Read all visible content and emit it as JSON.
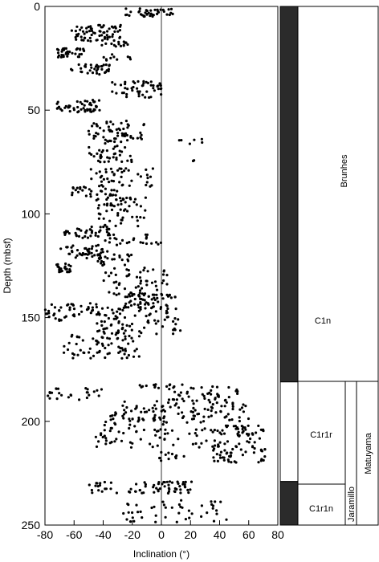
{
  "chart_data": {
    "type": "scatter",
    "title": "",
    "xlabel": "Inclination (°)",
    "ylabel": "Depth (mbsf)",
    "xlim": [
      -80,
      80
    ],
    "ylim": [
      0,
      250
    ],
    "y_inverted": true,
    "x_ticks": [
      -80,
      -60,
      -40,
      -20,
      0,
      20,
      40,
      60,
      80
    ],
    "y_ticks": [
      0,
      50,
      100,
      150,
      200,
      250
    ],
    "x_tick_labels": [
      "-80",
      "-60",
      "-40",
      "-20",
      "0",
      "20",
      "40",
      "60",
      "80"
    ],
    "y_tick_labels": [
      "0",
      "50",
      "100",
      "150",
      "200",
      "250"
    ],
    "reference_line_x": 0,
    "grid": false,
    "series_color": "#000000",
    "depth_segments": [
      {
        "y0": 1,
        "y1": 5,
        "xmin": -25,
        "xmax": 8,
        "count": 40
      },
      {
        "y0": 9,
        "y1": 17,
        "xmin": -62,
        "xmax": -28,
        "count": 70
      },
      {
        "y0": 17,
        "y1": 20,
        "xmin": -45,
        "xmax": -22,
        "count": 15
      },
      {
        "y0": 20,
        "y1": 25,
        "xmin": -75,
        "xmax": -52,
        "count": 35
      },
      {
        "y0": 23,
        "y1": 26,
        "xmin": -45,
        "xmax": -20,
        "count": 10
      },
      {
        "y0": 28,
        "y1": 33,
        "xmin": -62,
        "xmax": -35,
        "count": 35
      },
      {
        "y0": 36,
        "y1": 44,
        "xmin": -35,
        "xmax": 0,
        "count": 50
      },
      {
        "y0": 45,
        "y1": 51,
        "xmin": -72,
        "xmax": -42,
        "count": 50
      },
      {
        "y0": 55,
        "y1": 65,
        "xmin": -50,
        "xmax": -10,
        "count": 60
      },
      {
        "y0": 63,
        "y1": 68,
        "xmin": 10,
        "xmax": 30,
        "count": 6
      },
      {
        "y0": 65,
        "y1": 75,
        "xmin": -50,
        "xmax": -20,
        "count": 40
      },
      {
        "y0": 73,
        "y1": 78,
        "xmin": 20,
        "xmax": 25,
        "count": 2
      },
      {
        "y0": 78,
        "y1": 87,
        "xmin": -50,
        "xmax": -5,
        "count": 45
      },
      {
        "y0": 87,
        "y1": 92,
        "xmin": -62,
        "xmax": -30,
        "count": 30
      },
      {
        "y0": 92,
        "y1": 106,
        "xmin": -45,
        "xmax": -10,
        "count": 60
      },
      {
        "y0": 106,
        "y1": 112,
        "xmin": -68,
        "xmax": -35,
        "count": 40
      },
      {
        "y0": 110,
        "y1": 115,
        "xmin": -40,
        "xmax": 0,
        "count": 25
      },
      {
        "y0": 115,
        "y1": 122,
        "xmin": -70,
        "xmax": -40,
        "count": 40
      },
      {
        "y0": 118,
        "y1": 125,
        "xmin": -45,
        "xmax": -20,
        "count": 30
      },
      {
        "y0": 124,
        "y1": 128,
        "xmin": -72,
        "xmax": -60,
        "count": 25
      },
      {
        "y0": 126,
        "y1": 140,
        "xmin": -40,
        "xmax": 5,
        "count": 60
      },
      {
        "y0": 138,
        "y1": 146,
        "xmin": -30,
        "xmax": 10,
        "count": 60
      },
      {
        "y0": 143,
        "y1": 152,
        "xmin": -80,
        "xmax": -40,
        "count": 50
      },
      {
        "y0": 145,
        "y1": 158,
        "xmin": -45,
        "xmax": 15,
        "count": 80
      },
      {
        "y0": 158,
        "y1": 170,
        "xmin": -68,
        "xmax": -15,
        "count": 70
      },
      {
        "y0": 182,
        "y1": 184,
        "xmin": -15,
        "xmax": 15,
        "count": 15
      },
      {
        "y0": 184,
        "y1": 190,
        "xmin": -80,
        "xmax": -40,
        "count": 25
      },
      {
        "y0": 183,
        "y1": 190,
        "xmin": 5,
        "xmax": 55,
        "count": 40
      },
      {
        "y0": 190,
        "y1": 200,
        "xmin": -35,
        "xmax": 60,
        "count": 110
      },
      {
        "y0": 200,
        "y1": 213,
        "xmin": -45,
        "xmax": 35,
        "count": 70
      },
      {
        "y0": 202,
        "y1": 220,
        "xmin": 35,
        "xmax": 72,
        "count": 100
      },
      {
        "y0": 214,
        "y1": 219,
        "xmin": -5,
        "xmax": 20,
        "count": 12
      },
      {
        "y0": 229,
        "y1": 235,
        "xmin": -50,
        "xmax": 25,
        "count": 70
      },
      {
        "y0": 238,
        "y1": 249,
        "xmin": -30,
        "xmax": 45,
        "count": 45
      }
    ],
    "chronostratigraphy": {
      "normal_color": "#2b2b2b",
      "reversed_color": "#ffffff",
      "intervals": [
        {
          "top": 0,
          "bottom": 181,
          "polarity": "normal",
          "chron": "C1n",
          "epoch": "Brunhes"
        },
        {
          "top": 181,
          "bottom": 229,
          "polarity": "reversed",
          "chron": "C1r1r",
          "epoch": "Matuyama"
        },
        {
          "top": 229,
          "bottom": 250,
          "polarity": "normal",
          "chron": "C1r1n",
          "subchron": "Jaramillo",
          "epoch": "Matuyama"
        }
      ],
      "labels": {
        "brunhes": "Brunhes",
        "c1n": "C1n",
        "c1r1r": "C1r1r",
        "c1r1n": "C1r1n",
        "jaramillo": "Jaramillo",
        "matuyama": "Matuyama"
      }
    }
  }
}
